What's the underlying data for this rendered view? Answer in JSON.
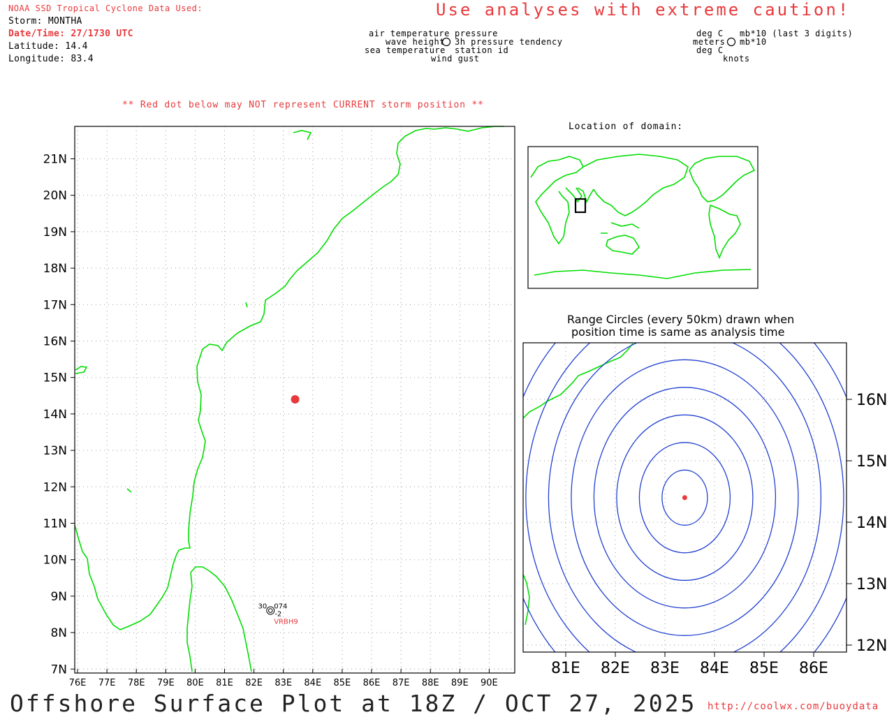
{
  "header": {
    "source_title": "NOAA SSD Tropical Cyclone Data Used:",
    "storm_line": "Storm: MONTHA",
    "datetime_line": "Date/Time: 27/1730 UTC",
    "latitude_line": "Latitude: 14.4",
    "longitude_line": "Longitude: 83.4",
    "caution": "Use analyses with extreme caution!"
  },
  "legend": {
    "left_labels": [
      "air temperature",
      "wave height",
      "sea temperature"
    ],
    "right_labels": [
      "pressure",
      "3h pressure tendency",
      "station id"
    ],
    "bottom_label": "wind gust",
    "unit_left": [
      "deg C",
      "meters",
      "deg C"
    ],
    "unit_right": [
      "mb*10 (last 3 digits)",
      "mb*10"
    ],
    "unit_bottom": "knots"
  },
  "main_map": {
    "warning_note": "** Red dot below may NOT represent CURRENT storm position **",
    "lat_ticks": [
      "21N",
      "20N",
      "19N",
      "18N",
      "17N",
      "16N",
      "15N",
      "14N",
      "13N",
      "12N",
      "11N",
      "10N",
      "9N",
      "8N",
      "7N"
    ],
    "lon_ticks": [
      "76E",
      "77E",
      "78E",
      "79E",
      "80E",
      "81E",
      "82E",
      "83E",
      "84E",
      "85E",
      "86E",
      "87E",
      "88E",
      "89E",
      "90E"
    ],
    "storm_position": {
      "lat": 14.4,
      "lon": 83.4
    },
    "station": {
      "id": "VRBH9",
      "air_temp": "30",
      "pressure": "074",
      "tendency": "-2",
      "lat": 8.7,
      "lon": 82.3
    }
  },
  "inset": {
    "title": "Location of domain:"
  },
  "range_panel": {
    "title_line1": "Range Circles (every 50km) drawn when",
    "title_line2": "position time is same as analysis time",
    "lon_ticks": [
      "81E",
      "82E",
      "83E",
      "84E",
      "85E",
      "86E"
    ],
    "lat_ticks": [
      "16N",
      "15N",
      "14N",
      "13N",
      "12N"
    ],
    "ring_count": 8
  },
  "footer": {
    "plot_title": "Offshore Surface Plot at 18Z / OCT 27, 2025",
    "url": "http://coolwx.com/buoydata"
  },
  "colors": {
    "coast": "#00dd00",
    "storm": "#e8393c",
    "rings": "#2040d0",
    "header_red": "#e8393c"
  }
}
